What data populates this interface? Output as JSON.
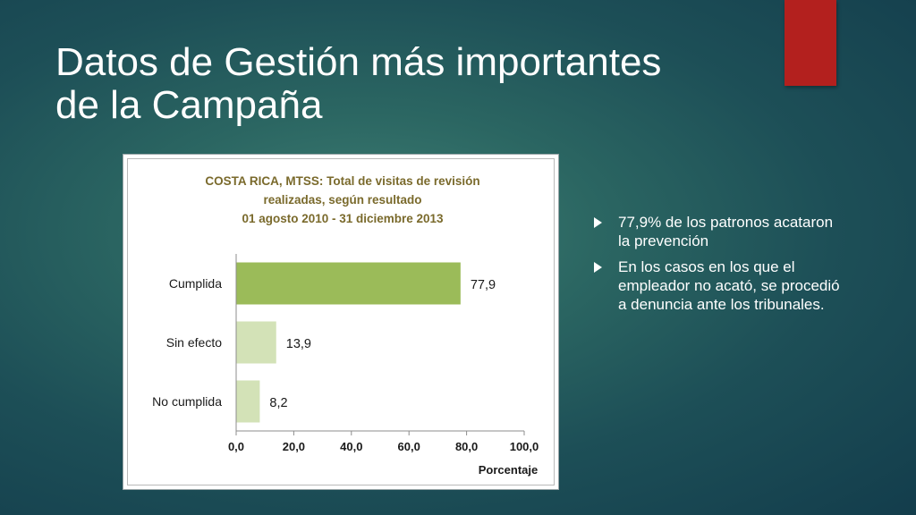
{
  "slide": {
    "title_line1": "Datos de Gestión más importantes",
    "title_line2": "de la Campaña",
    "bullets": [
      "77,9% de los patronos acataron la prevención",
      "En los casos en los que el empleador no acató, se procedió a denuncia ante los tribunales."
    ]
  },
  "colors": {
    "accent_tab": "#b3201e",
    "bar_main": "#9bbb59",
    "bar_light": "#d3e2b7",
    "chart_title": "#7a6a2c"
  },
  "chart_data": {
    "type": "bar",
    "orientation": "horizontal",
    "title_lines": [
      "COSTA RICA, MTSS:  Total de visitas de revisión",
      "realizadas, según resultado",
      "01 agosto 2010 - 31 diciembre 2013"
    ],
    "categories": [
      "Cumplida",
      "Sin efecto",
      "No cumplida"
    ],
    "values": [
      77.9,
      13.9,
      8.2
    ],
    "value_labels": [
      "77,9",
      "13,9",
      "8,2"
    ],
    "xlabel": "Porcentaje",
    "ylabel": "",
    "xlim": [
      0,
      100
    ],
    "xticks": [
      "0,0",
      "20,0",
      "40,0",
      "60,0",
      "80,0",
      "100,0"
    ],
    "grid": false,
    "legend": "none"
  }
}
